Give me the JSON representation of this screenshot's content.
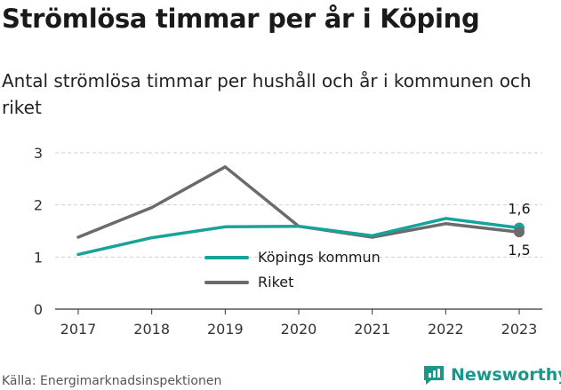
{
  "title": "Strömlösa timmar per år i Köping",
  "subtitle": "Antal strömlösa timmar per hushåll och år i kommunen och riket",
  "source": "Källa: Energimarknadsinspektionen",
  "brand": {
    "name": "Newsworthy",
    "logo_icon": "newsworthy-logo-icon"
  },
  "colors": {
    "kommun": "#18a39a",
    "riket": "#6b6b6b",
    "grid": "#d0d0d0"
  },
  "chart_data": {
    "type": "line",
    "title": "",
    "xlabel": "",
    "ylabel": "",
    "categories": [
      "2017",
      "2018",
      "2019",
      "2020",
      "2021",
      "2022",
      "2023"
    ],
    "ylim": [
      0,
      3
    ],
    "yticks": [
      "0",
      "1",
      "2",
      "3"
    ],
    "grid": true,
    "legend_position": "center",
    "series": [
      {
        "name": "Köpings kommun",
        "values": [
          1.05,
          1.37,
          1.58,
          1.59,
          1.41,
          1.74,
          1.56
        ],
        "end_label": "1,6"
      },
      {
        "name": "Riket",
        "values": [
          1.38,
          1.95,
          2.73,
          1.59,
          1.38,
          1.64,
          1.48
        ],
        "end_label": "1,5"
      }
    ]
  }
}
